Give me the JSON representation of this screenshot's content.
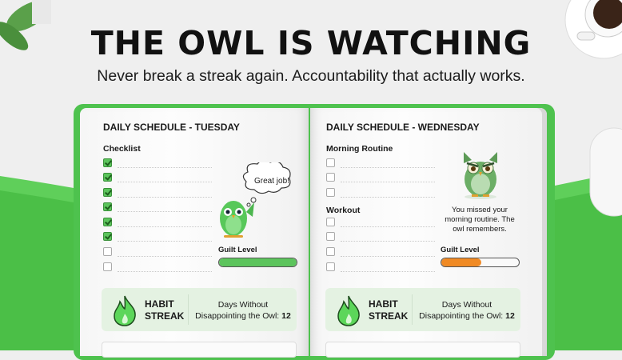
{
  "header": {
    "title": "THE OWL IS WATCHING",
    "subtitle": "Never break a streak again. Accountability that actually works."
  },
  "left_page": {
    "heading": "DAILY SCHEDULE - TUESDAY",
    "section": "Checklist",
    "checklist": [
      true,
      true,
      true,
      true,
      true,
      true,
      false,
      false
    ],
    "bubble": "Great job!",
    "guilt_label": "Guilt Level",
    "guilt_level": 1.0,
    "guilt_color": "#5cc45c",
    "streak": {
      "label_1": "HABIT",
      "label_2": "STREAK",
      "days_line1": "Days Without",
      "days_line2": "Disappointing the Owl: ",
      "days": "12"
    }
  },
  "right_page": {
    "heading": "DAILY SCHEDULE - WEDNESDAY",
    "section_1": "Morning Routine",
    "morning": [
      false,
      false,
      false
    ],
    "section_2": "Workout",
    "workout": [
      false,
      false,
      false,
      false
    ],
    "message": "You missed your morning routine. The owl remembers.",
    "guilt_label": "Guilt Level",
    "guilt_level": 0.52,
    "guilt_color": "#f08a24",
    "streak": {
      "label_1": "HABIT",
      "label_2": "STREAK",
      "days_line1": "Days Without",
      "days_line2": "Disappointing the Owl: ",
      "days": "12"
    }
  },
  "colors": {
    "brand_green": "#4ec24e",
    "background": "#efefef"
  }
}
